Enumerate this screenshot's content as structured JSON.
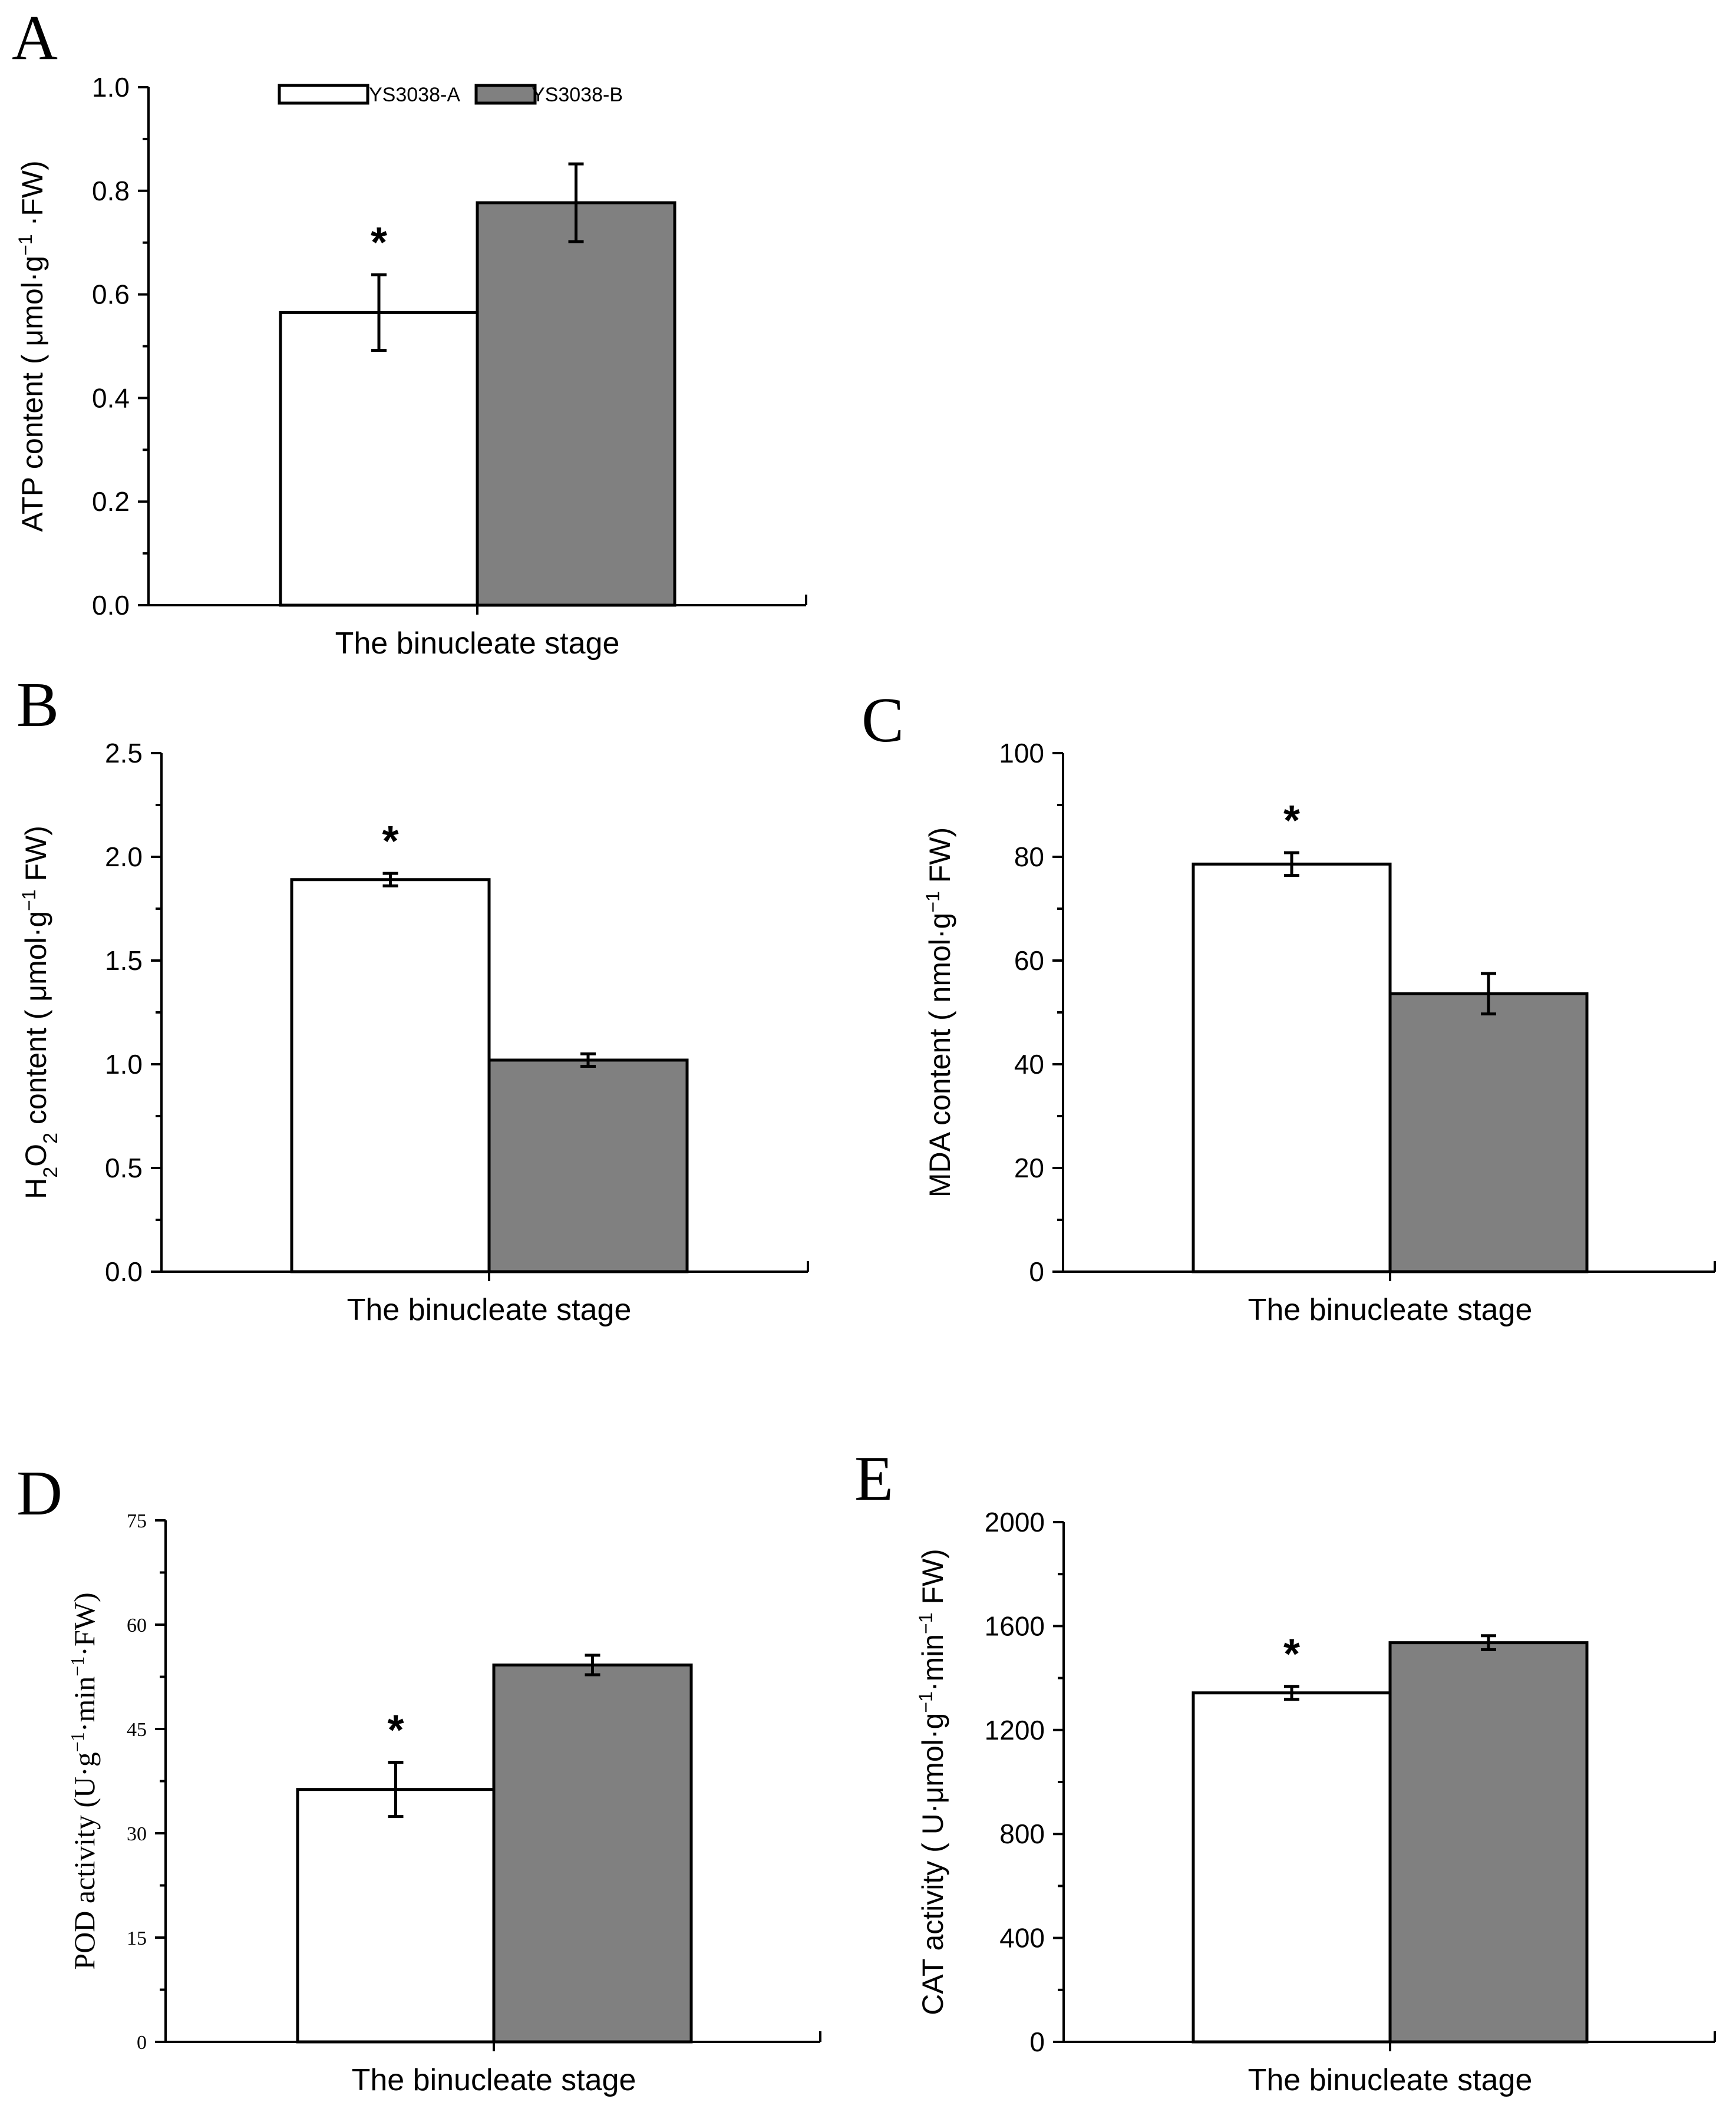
{
  "figure": {
    "legend": {
      "series_a": "YS3038-A",
      "series_b": "YS3038-B"
    },
    "colors": {
      "series_a": "#ffffff",
      "series_b": "#808080",
      "outline": "#000000"
    },
    "significance_marker": "*"
  },
  "chart_data": [
    {
      "panel": "A",
      "type": "bar",
      "categories": [
        "The binucleate stage"
      ],
      "series": [
        {
          "name": "YS3038-A",
          "values": [
            0.565
          ],
          "errors": [
            0.073
          ],
          "significant": true
        },
        {
          "name": "YS3038-B",
          "values": [
            0.777
          ],
          "errors": [
            0.075
          ],
          "significant": false
        }
      ],
      "xlabel": "The binucleate stage",
      "ylabel": "ATP content ( μmol·g⁻¹ ·FW)",
      "ylim": [
        0,
        1.0
      ],
      "yticks": [
        "0.0",
        "0.2",
        "0.4",
        "0.6",
        "0.8",
        "1.0"
      ],
      "legend": "top"
    },
    {
      "panel": "B",
      "type": "bar",
      "categories": [
        "The binucleate stage"
      ],
      "series": [
        {
          "name": "YS3038-A",
          "values": [
            1.89
          ],
          "errors": [
            0.03
          ],
          "significant": true
        },
        {
          "name": "YS3038-B",
          "values": [
            1.02
          ],
          "errors": [
            0.03
          ],
          "significant": false
        }
      ],
      "xlabel": "The binucleate stage",
      "ylabel": "H₂O₂ content ( μmol·g⁻¹ FW)",
      "ylim": [
        0,
        2.5
      ],
      "yticks": [
        "0.0",
        "0.5",
        "1.0",
        "1.5",
        "2.0",
        "2.5"
      ]
    },
    {
      "panel": "C",
      "type": "bar",
      "categories": [
        "The binucleate stage"
      ],
      "series": [
        {
          "name": "YS3038-A",
          "values": [
            78.6
          ],
          "errors": [
            2.2
          ],
          "significant": true
        },
        {
          "name": "YS3038-B",
          "values": [
            53.6
          ],
          "errors": [
            3.9
          ],
          "significant": false
        }
      ],
      "xlabel": "The binucleate stage",
      "ylabel": "MDA content ( nmol·g⁻¹ FW)",
      "ylim": [
        0,
        100
      ],
      "yticks": [
        "0",
        "20",
        "40",
        "60",
        "80",
        "100"
      ]
    },
    {
      "panel": "D",
      "type": "bar",
      "categories": [
        "The binucleate stage"
      ],
      "series": [
        {
          "name": "YS3038-A",
          "values": [
            36.3
          ],
          "errors": [
            3.9
          ],
          "significant": true
        },
        {
          "name": "YS3038-B",
          "values": [
            54.2
          ],
          "errors": [
            1.4
          ],
          "significant": false
        }
      ],
      "xlabel": "The binucleate stage",
      "ylabel": "POD activity (U·g⁻¹·min⁻¹·FW)",
      "ylim": [
        0,
        75
      ],
      "yticks": [
        "0",
        "15",
        "30",
        "45",
        "60",
        "75"
      ]
    },
    {
      "panel": "E",
      "type": "bar",
      "categories": [
        "The binucleate stage"
      ],
      "series": [
        {
          "name": "YS3038-A",
          "values": [
            1343
          ],
          "errors": [
            25
          ],
          "significant": true
        },
        {
          "name": "YS3038-B",
          "values": [
            1536
          ],
          "errors": [
            27
          ],
          "significant": false
        }
      ],
      "xlabel": "The binucleate stage",
      "ylabel": "CAT activity ( U·μmol·g⁻¹·min⁻¹ FW)",
      "ylim": [
        0,
        2000
      ],
      "yticks": [
        "0",
        "400",
        "800",
        "1200",
        "1600",
        "2000"
      ]
    }
  ]
}
